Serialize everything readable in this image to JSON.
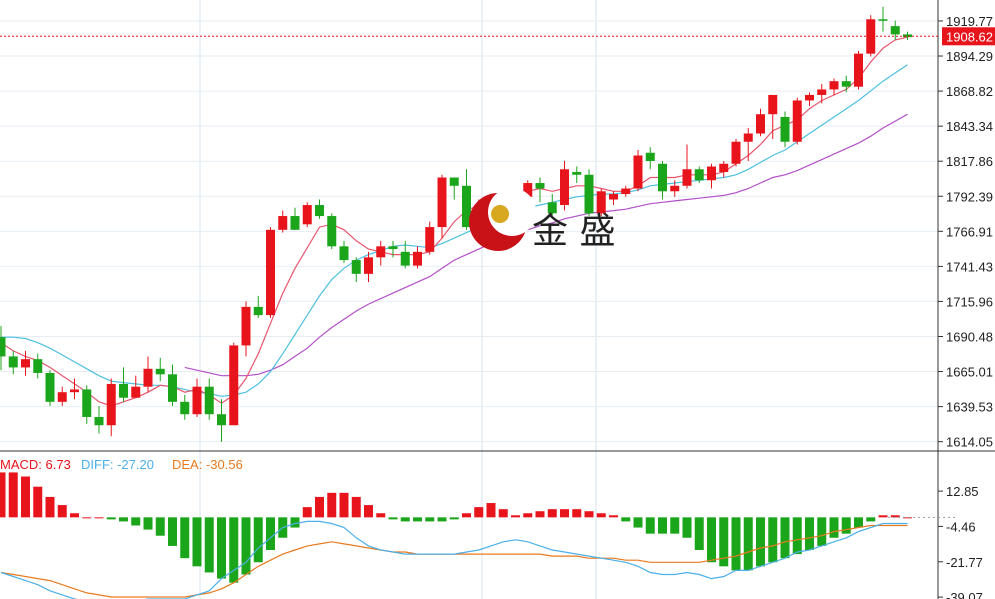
{
  "chart_data": [
    {
      "type": "candlestick",
      "panel": "price",
      "y_ticks": [
        "1919.77",
        "1894.29",
        "1868.82",
        "1843.34",
        "1817.86",
        "1792.39",
        "1766.91",
        "1741.43",
        "1715.96",
        "1690.48",
        "1665.01",
        "1639.53",
        "1614.05"
      ],
      "ylim": [
        1608,
        1935
      ],
      "last_price": "1908.62",
      "colors": {
        "up": "#e8141b",
        "down": "#1aa51a",
        "ma_short": "#e8556d",
        "ma_mid": "#4cc0e0",
        "ma_long": "#b44fc8",
        "last_line": "#e8141b"
      },
      "candles": [
        [
          1690,
          1676,
          1698,
          1666
        ],
        [
          1676,
          1668,
          1680,
          1663
        ],
        [
          1668,
          1674,
          1680,
          1662
        ],
        [
          1674,
          1664,
          1678,
          1660
        ],
        [
          1664,
          1643,
          1666,
          1640
        ],
        [
          1643,
          1650,
          1654,
          1640
        ],
        [
          1650,
          1652,
          1660,
          1645
        ],
        [
          1652,
          1632,
          1655,
          1627
        ],
        [
          1632,
          1626,
          1640,
          1620
        ],
        [
          1626,
          1656,
          1660,
          1618
        ],
        [
          1656,
          1646,
          1668,
          1643
        ],
        [
          1646,
          1654,
          1662,
          1650
        ],
        [
          1654,
          1667,
          1676,
          1650
        ],
        [
          1667,
          1663,
          1675,
          1658
        ],
        [
          1663,
          1643,
          1670,
          1640
        ],
        [
          1643,
          1634,
          1648,
          1630
        ],
        [
          1634,
          1654,
          1660,
          1632
        ],
        [
          1654,
          1634,
          1660,
          1630
        ],
        [
          1634,
          1626,
          1645,
          1614
        ],
        [
          1626,
          1684,
          1686,
          1626
        ],
        [
          1684,
          1712,
          1716,
          1676
        ],
        [
          1712,
          1706,
          1720,
          1704
        ],
        [
          1706,
          1768,
          1770,
          1704
        ],
        [
          1768,
          1778,
          1782,
          1766
        ],
        [
          1778,
          1768,
          1784,
          1768
        ],
        [
          1772,
          1786,
          1788,
          1770
        ],
        [
          1786,
          1778,
          1790,
          1776
        ],
        [
          1778,
          1756,
          1780,
          1754
        ],
        [
          1756,
          1746,
          1760,
          1744
        ],
        [
          1746,
          1736,
          1748,
          1730
        ],
        [
          1736,
          1748,
          1752,
          1730
        ],
        [
          1748,
          1756,
          1760,
          1742
        ],
        [
          1756,
          1754,
          1760,
          1748
        ],
        [
          1752,
          1742,
          1760,
          1740
        ],
        [
          1742,
          1752,
          1756,
          1740
        ],
        [
          1752,
          1770,
          1774,
          1750
        ],
        [
          1770,
          1806,
          1808,
          1762
        ],
        [
          1806,
          1800,
          1806,
          1790
        ],
        [
          1800,
          1770,
          1812,
          1768
        ],
        [
          1770,
          1786,
          1790,
          1768
        ],
        [
          1786,
          1790,
          1794,
          1784
        ],
        [
          1790,
          1792,
          1794,
          1788
        ],
        [
          1790,
          1796,
          1798,
          1786
        ],
        [
          1792,
          1802,
          1804,
          1780
        ],
        [
          1802,
          1798,
          1806,
          1788
        ],
        [
          1788,
          1780,
          1794,
          1778
        ],
        [
          1786,
          1812,
          1818,
          1782
        ],
        [
          1810,
          1808,
          1814,
          1802
        ],
        [
          1808,
          1780,
          1812,
          1778
        ],
        [
          1780,
          1796,
          1798,
          1778
        ],
        [
          1790,
          1794,
          1796,
          1786
        ],
        [
          1794,
          1798,
          1800,
          1792
        ],
        [
          1798,
          1822,
          1826,
          1796
        ],
        [
          1824,
          1818,
          1828,
          1812
        ],
        [
          1816,
          1796,
          1818,
          1790
        ],
        [
          1796,
          1800,
          1804,
          1792
        ],
        [
          1800,
          1812,
          1830,
          1798
        ],
        [
          1812,
          1804,
          1814,
          1802
        ],
        [
          1804,
          1814,
          1816,
          1798
        ],
        [
          1810,
          1816,
          1818,
          1806
        ],
        [
          1816,
          1832,
          1834,
          1814
        ],
        [
          1832,
          1838,
          1842,
          1818
        ],
        [
          1838,
          1852,
          1856,
          1836
        ],
        [
          1852,
          1866,
          1866,
          1834
        ],
        [
          1850,
          1832,
          1854,
          1828
        ],
        [
          1832,
          1862,
          1864,
          1830
        ],
        [
          1862,
          1866,
          1868,
          1858
        ],
        [
          1866,
          1870,
          1874,
          1860
        ],
        [
          1870,
          1876,
          1878,
          1866
        ],
        [
          1876,
          1872,
          1880,
          1868
        ],
        [
          1872,
          1896,
          1898,
          1870
        ],
        [
          1896,
          1921,
          1924,
          1894
        ],
        [
          1921,
          1920,
          1930,
          1912
        ],
        [
          1916,
          1910,
          1920,
          1906
        ],
        [
          1910,
          1908,
          1912,
          1906
        ]
      ],
      "ma_short": [
        1686,
        1680,
        1676,
        1673,
        1668,
        1662,
        1656,
        1650,
        1643,
        1640,
        1643,
        1646,
        1650,
        1655,
        1654,
        1650,
        1652,
        1648,
        1642,
        1648,
        1660,
        1678,
        1700,
        1722,
        1740,
        1755,
        1770,
        1772,
        1768,
        1760,
        1754,
        1752,
        1750,
        1750,
        1750,
        1752,
        1762,
        1774,
        1782,
        1786,
        1790,
        1792,
        1794,
        1796,
        1798,
        1796,
        1798,
        1800,
        1800,
        1798,
        1796,
        1796,
        1800,
        1806,
        1806,
        1806,
        1808,
        1808,
        1808,
        1810,
        1816,
        1822,
        1830,
        1840,
        1844,
        1848,
        1856,
        1862,
        1866,
        1870,
        1878,
        1890,
        1900,
        1906,
        1908
      ],
      "ma_mid": [
        1690,
        1690,
        1689,
        1686,
        1682,
        1677,
        1672,
        1667,
        1662,
        1658,
        1657,
        1656,
        1655,
        1655,
        1654,
        1652,
        1650,
        1649,
        1647,
        1648,
        1650,
        1656,
        1665,
        1678,
        1692,
        1706,
        1720,
        1732,
        1740,
        1746,
        1750,
        1753,
        1756,
        1757,
        1756,
        1755,
        1758,
        1762,
        1766,
        1770,
        1774,
        1778,
        1782,
        1784,
        1786,
        1788,
        1790,
        1792,
        1793,
        1794,
        1794,
        1795,
        1797,
        1800,
        1801,
        1802,
        1803,
        1804,
        1805,
        1806,
        1808,
        1812,
        1817,
        1822,
        1826,
        1832,
        1838,
        1844,
        1850,
        1856,
        1862,
        1869,
        1876,
        1882,
        1888
      ],
      "ma_long": [
        null,
        null,
        null,
        null,
        null,
        null,
        null,
        null,
        null,
        null,
        null,
        null,
        null,
        null,
        null,
        1668,
        1666,
        1664,
        1662,
        1662,
        1662,
        1663,
        1666,
        1670,
        1676,
        1682,
        1690,
        1697,
        1703,
        1709,
        1714,
        1718,
        1722,
        1726,
        1730,
        1734,
        1740,
        1746,
        1750,
        1754,
        1758,
        1762,
        1765,
        1768,
        1771,
        1773,
        1776,
        1778,
        1780,
        1781,
        1782,
        1783,
        1785,
        1787,
        1788,
        1789,
        1790,
        1791,
        1792,
        1793,
        1795,
        1798,
        1802,
        1806,
        1808,
        1811,
        1815,
        1819,
        1823,
        1827,
        1831,
        1836,
        1842,
        1847,
        1852
      ]
    },
    {
      "type": "macd",
      "panel": "indicator",
      "labels": {
        "macd": "MACD: 6.73",
        "diff": "DIFF: -27.20",
        "dea": "DEA: -30.56"
      },
      "y_ticks": [
        "12.85",
        "-4.46",
        "-21.77",
        "-39.07"
      ],
      "ylim": [
        -40,
        32
      ],
      "colors": {
        "up": "#e8141b",
        "down": "#1aa51a",
        "diff": "#4cb0e8",
        "dea": "#e87a20",
        "macd_label": "#e8141b",
        "diff_label": "#4cb0e8",
        "dea_label": "#e87a20"
      },
      "hist": [
        22,
        22,
        20,
        15,
        10,
        6,
        2,
        0,
        0,
        -1,
        -2,
        -4,
        -6,
        -9,
        -14,
        -20,
        -24,
        -27,
        -30,
        -32,
        -28,
        -22,
        -16,
        -10,
        -5,
        5,
        10,
        12,
        12,
        10,
        6,
        2,
        -1,
        -2,
        -2,
        -2,
        -2,
        -1,
        2,
        5,
        7,
        4,
        1,
        2,
        3,
        4,
        4,
        4,
        3,
        2,
        1,
        -2,
        -5,
        -8,
        -8,
        -8,
        -10,
        -16,
        -22,
        -24,
        -26,
        -26,
        -24,
        -22,
        -20,
        -18,
        -16,
        -14,
        -10,
        -8,
        -5,
        -2,
        1,
        1,
        0
      ],
      "diff": [
        -27,
        -29,
        -31,
        -33,
        -36,
        -38,
        -40,
        -41,
        -42,
        -42,
        -41,
        -41,
        -40,
        -40,
        -40,
        -40,
        -38,
        -36,
        -30,
        -26,
        -22,
        -15,
        -10,
        -5,
        -3,
        -2,
        -2,
        -3,
        -5,
        -10,
        -14,
        -16,
        -17,
        -18,
        -18,
        -18,
        -18,
        -18,
        -17,
        -16,
        -14,
        -12,
        -11,
        -12,
        -14,
        -16,
        -17,
        -18,
        -19,
        -20,
        -21,
        -22,
        -24,
        -27,
        -28,
        -28,
        -27,
        -28,
        -30,
        -29,
        -26,
        -26,
        -24,
        -22,
        -20,
        -17,
        -16,
        -14,
        -12,
        -10,
        -7,
        -5,
        -3,
        -3,
        -3
      ],
      "dea": [
        -27,
        -28,
        -29,
        -30,
        -31,
        -33,
        -35,
        -37,
        -38,
        -39,
        -39,
        -39,
        -39,
        -39,
        -39,
        -39,
        -38,
        -37,
        -35,
        -32,
        -28,
        -24,
        -21,
        -18,
        -16,
        -14,
        -13,
        -12,
        -13,
        -14,
        -15,
        -16,
        -17,
        -17,
        -18,
        -18,
        -18,
        -18,
        -18,
        -18,
        -18,
        -18,
        -18,
        -18,
        -18,
        -19,
        -19,
        -19,
        -20,
        -20,
        -20,
        -21,
        -21,
        -22,
        -22,
        -22,
        -22,
        -22,
        -21,
        -20,
        -19,
        -17,
        -15,
        -14,
        -12,
        -11,
        -10,
        -9,
        -7,
        -6,
        -5,
        -4,
        -4,
        -4,
        -4
      ]
    }
  ],
  "watermark": {
    "text": "金 盛"
  }
}
